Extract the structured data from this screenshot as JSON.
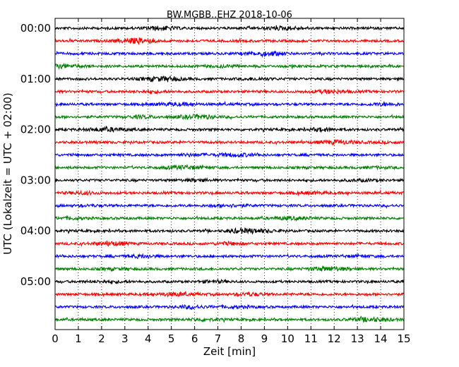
{
  "chart_data": {
    "type": "line",
    "subtype": "helicorder-dayplot",
    "title": "BW.MGBB..EHZ 2018-10-06",
    "xlabel": "Zeit  [min]",
    "ylabel": "UTC (Lokalzeit = UTC + 02:00)",
    "xlim": [
      0,
      15
    ],
    "x_ticks": [
      "0",
      "1",
      "2",
      "3",
      "4",
      "5",
      "6",
      "7",
      "8",
      "9",
      "10",
      "11",
      "12",
      "13",
      "14",
      "15"
    ],
    "y_ticks": [
      "00:00",
      "01:00",
      "02:00",
      "03:00",
      "04:00",
      "05:00"
    ],
    "grid": "vertical dotted lines at each minute",
    "trace_colors": [
      "#000000",
      "#ff0000",
      "#0000ff",
      "#008000"
    ],
    "traces_per_hour": 4,
    "minutes_per_trace": 15,
    "series": [
      {
        "start": "00:00",
        "color": "#000000"
      },
      {
        "start": "00:15",
        "color": "#ff0000"
      },
      {
        "start": "00:30",
        "color": "#0000ff"
      },
      {
        "start": "00:45",
        "color": "#008000"
      },
      {
        "start": "01:00",
        "color": "#000000"
      },
      {
        "start": "01:15",
        "color": "#ff0000"
      },
      {
        "start": "01:30",
        "color": "#0000ff"
      },
      {
        "start": "01:45",
        "color": "#008000"
      },
      {
        "start": "02:00",
        "color": "#000000"
      },
      {
        "start": "02:15",
        "color": "#ff0000"
      },
      {
        "start": "02:30",
        "color": "#0000ff"
      },
      {
        "start": "02:45",
        "color": "#008000"
      },
      {
        "start": "03:00",
        "color": "#000000"
      },
      {
        "start": "03:15",
        "color": "#ff0000"
      },
      {
        "start": "03:30",
        "color": "#0000ff"
      },
      {
        "start": "03:45",
        "color": "#008000"
      },
      {
        "start": "04:00",
        "color": "#000000"
      },
      {
        "start": "04:15",
        "color": "#ff0000"
      },
      {
        "start": "04:30",
        "color": "#0000ff"
      },
      {
        "start": "04:45",
        "color": "#008000"
      },
      {
        "start": "05:00",
        "color": "#000000"
      },
      {
        "start": "05:15",
        "color": "#ff0000"
      },
      {
        "start": "05:30",
        "color": "#0000ff"
      },
      {
        "start": "05:45",
        "color": "#008000"
      }
    ]
  }
}
